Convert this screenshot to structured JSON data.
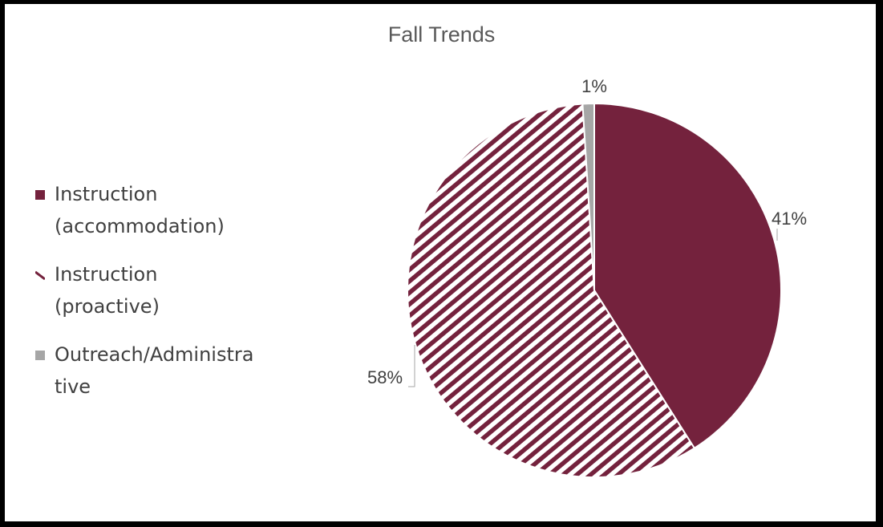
{
  "chart_data": {
    "type": "pie",
    "title": "Fall Trends",
    "slices": [
      {
        "label": "Instruction (accommodation)",
        "value": 41,
        "data_label": "41%",
        "color": "#74223d",
        "pattern": "solid"
      },
      {
        "label": "Instruction (proactive)",
        "value": 58,
        "data_label": "58%",
        "color": "#74223d",
        "pattern": "diagonal-stripes"
      },
      {
        "label": "Outreach/Administrative",
        "value": 1,
        "data_label": "1%",
        "color": "#a6a6a6",
        "pattern": "solid"
      }
    ],
    "legend_position": "left",
    "legend": [
      {
        "line1": "Instruction",
        "line2": "(accommodation)"
      },
      {
        "line1": "Instruction",
        "line2": "(proactive)"
      },
      {
        "line1": "Outreach/Administra",
        "line2": "tive"
      }
    ]
  },
  "colors": {
    "maroon": "#74223d",
    "gray": "#a6a6a6",
    "background": "#ffffff",
    "border": "#000000"
  }
}
